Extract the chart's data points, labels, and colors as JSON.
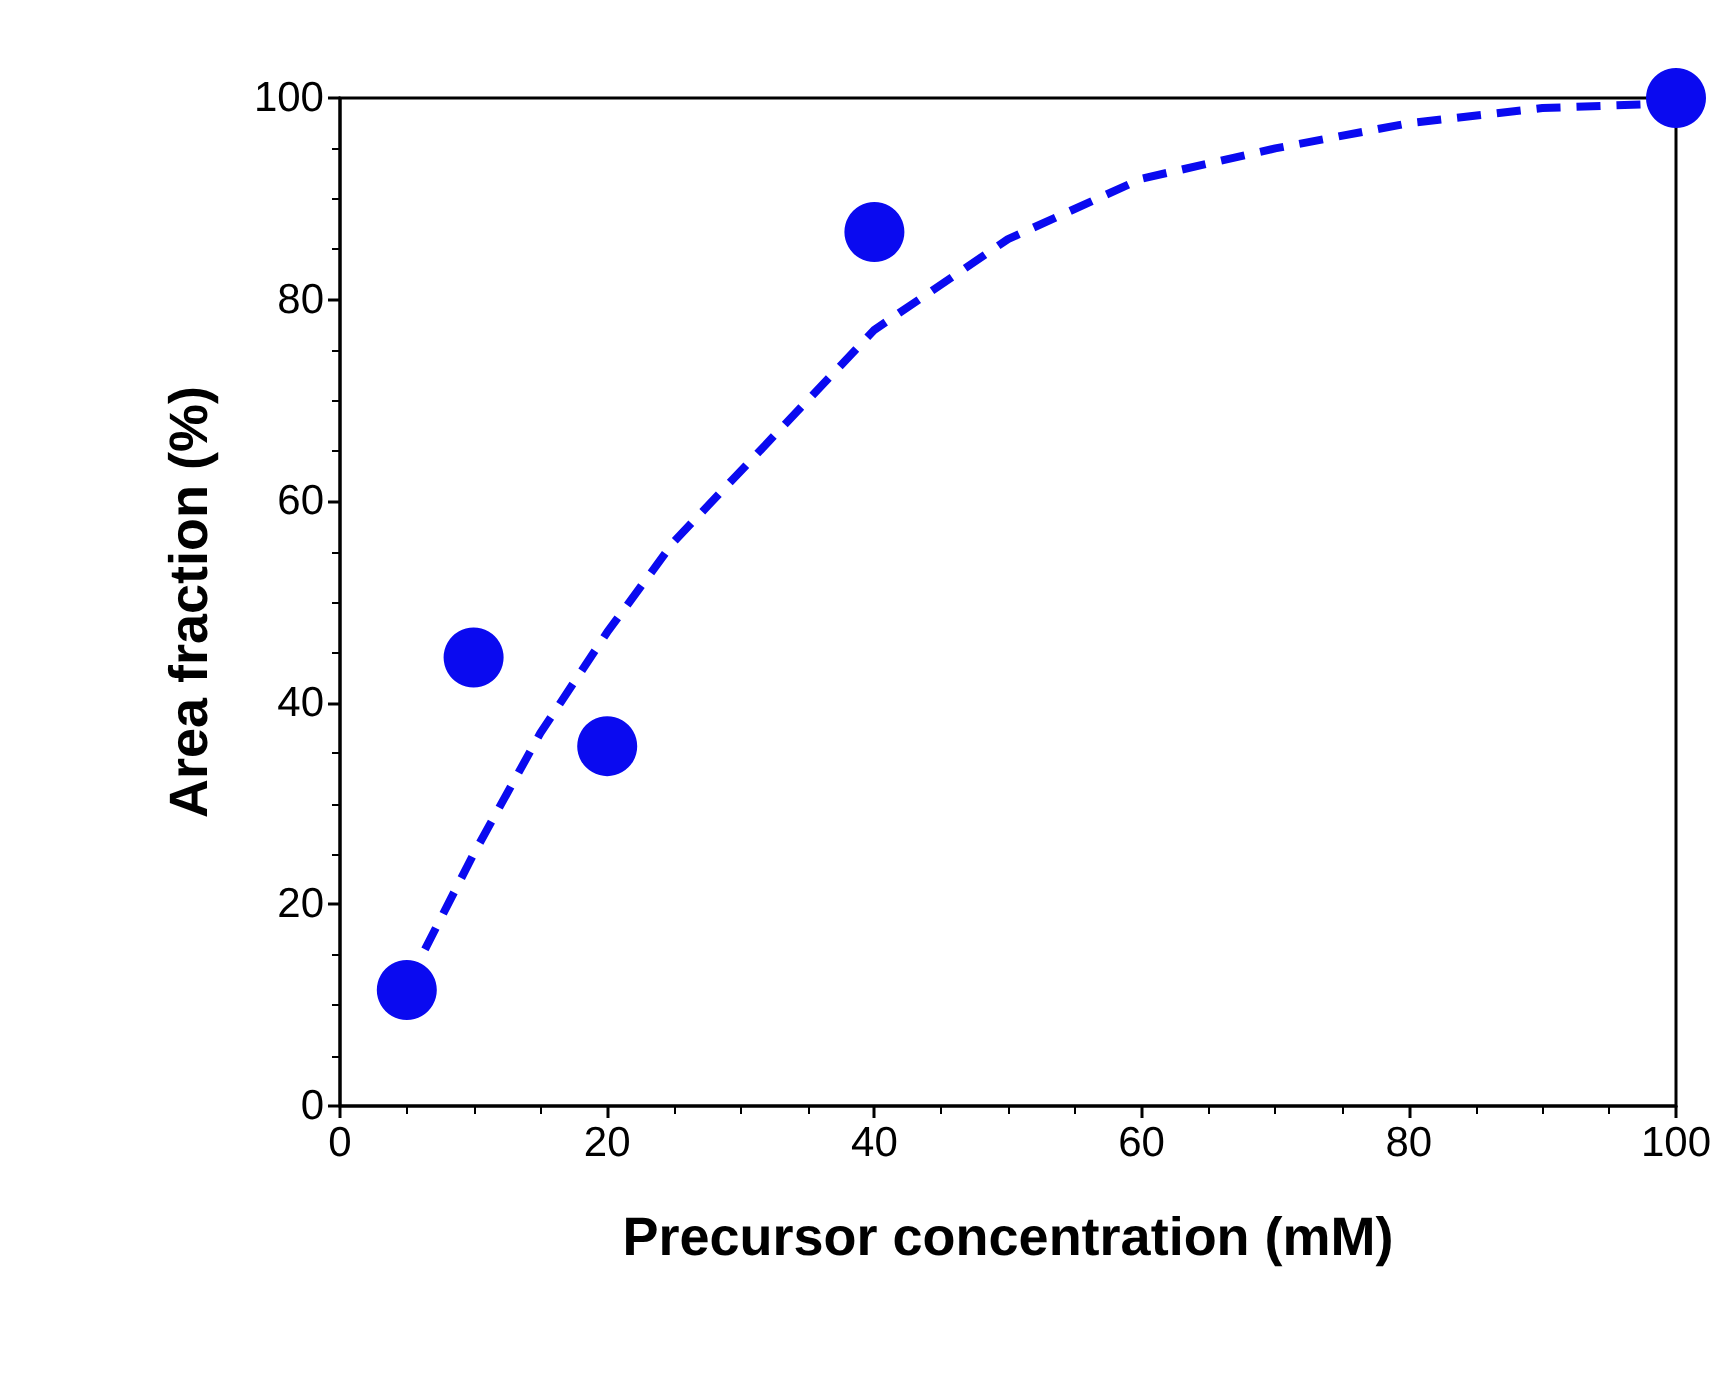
{
  "chart_data": {
    "type": "scatter",
    "xlabel": "Precursor concentration (mM)",
    "ylabel": "Area fraction (%)",
    "xlim": [
      0,
      100
    ],
    "xticks": [
      0,
      20,
      40,
      60,
      80,
      100
    ],
    "ylim": [
      0,
      100
    ],
    "yticks": [
      0,
      20,
      40,
      60,
      80,
      100
    ],
    "grid": false,
    "series": [
      {
        "color": "#0a0af0",
        "marker": "circle",
        "x": [
          5,
          10,
          20,
          40,
          100
        ],
        "values": [
          11.5,
          44.5,
          35.7,
          86.7,
          100
        ]
      },
      {
        "type": "line",
        "color": "#0a0af0",
        "marker": "none",
        "line_style": "dashed",
        "x": [
          5,
          10,
          15,
          20,
          25,
          30,
          40,
          50,
          60,
          70,
          80,
          90,
          100
        ],
        "values": [
          12,
          25,
          37,
          47,
          56,
          63,
          77,
          86,
          92,
          95,
          97.5,
          99,
          99.5
        ]
      }
    ]
  }
}
